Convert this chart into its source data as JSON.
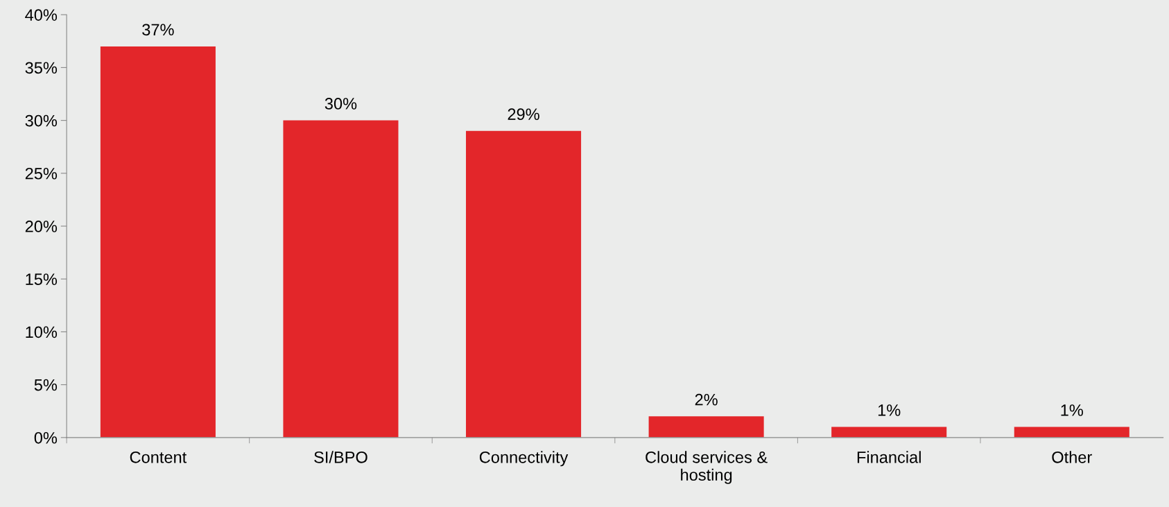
{
  "chart_data": {
    "type": "bar",
    "categories": [
      "Content",
      "SI/BPO",
      "Connectivity",
      "Cloud services &\nhosting",
      "Financial",
      "Other"
    ],
    "values": [
      37,
      30,
      29,
      2,
      1,
      1
    ],
    "color": "#e3262a",
    "ylim": [
      0,
      40
    ],
    "yticks": [
      {
        "value": 0,
        "label": "0%"
      },
      {
        "value": 5,
        "label": "5%"
      },
      {
        "value": 10,
        "label": "10%"
      },
      {
        "value": 15,
        "label": "15%"
      },
      {
        "value": 20,
        "label": "20%"
      },
      {
        "value": 25,
        "label": "25%"
      },
      {
        "value": 30,
        "label": "30%"
      },
      {
        "value": 35,
        "label": "35%"
      },
      {
        "value": 40,
        "label": "40%"
      }
    ],
    "value_labels": [
      "37%",
      "30%",
      "29%",
      "2%",
      "1%",
      "1%"
    ],
    "grid": false,
    "legend": false
  }
}
